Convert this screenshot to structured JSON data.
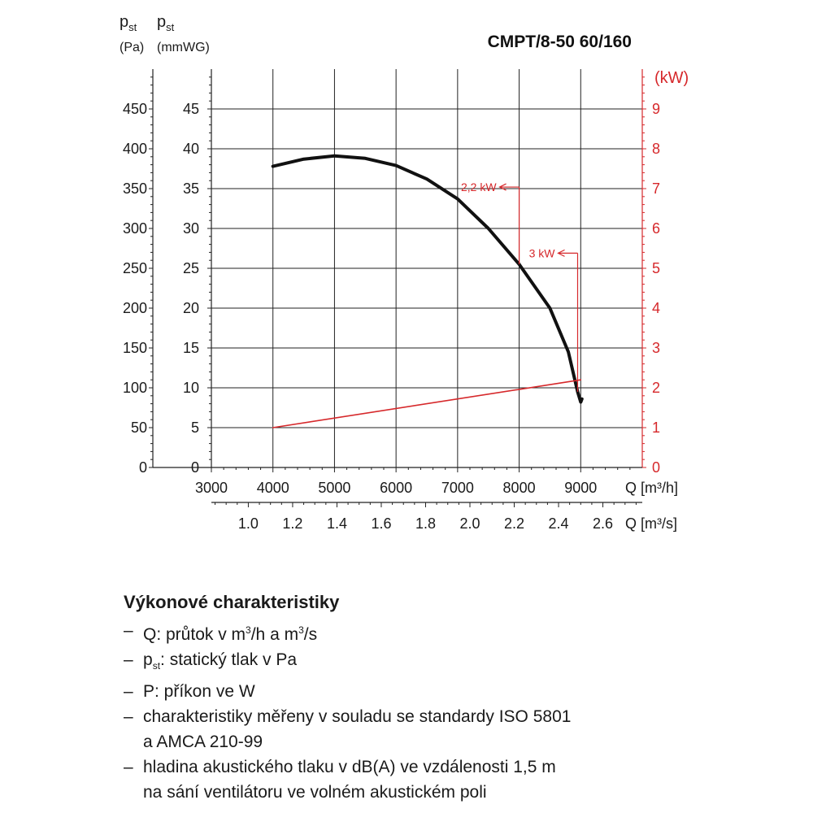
{
  "chart_data": {
    "type": "line",
    "title": "CMPT/8-50 60/160",
    "x_axis": {
      "label": "Q [m³/h]",
      "range": [
        3000,
        10000
      ],
      "ticks": [
        3000,
        4000,
        5000,
        6000,
        7000,
        8000,
        9000
      ]
    },
    "x2_axis": {
      "label": "Q [m³/s]",
      "ticks": [
        1.0,
        1.2,
        1.4,
        1.6,
        1.8,
        2.0,
        2.2,
        2.4,
        2.6
      ]
    },
    "y_axis_pa": {
      "label_main": "p",
      "label_sub": "st",
      "unit": "(Pa)",
      "range": [
        0,
        500
      ],
      "ticks": [
        0,
        50,
        100,
        150,
        200,
        250,
        300,
        350,
        400,
        450
      ]
    },
    "y_axis_mmwg": {
      "label_main": "p",
      "label_sub": "st",
      "unit": "(mmWG)",
      "range": [
        0,
        50
      ],
      "ticks": [
        0,
        5,
        10,
        15,
        20,
        25,
        30,
        35,
        40,
        45
      ]
    },
    "y_axis_kw": {
      "label": "(kW)",
      "range": [
        0,
        10
      ],
      "ticks": [
        0,
        1,
        2,
        3,
        4,
        5,
        6,
        7,
        8,
        9
      ],
      "color": "#d6282b"
    },
    "grid": true,
    "series": [
      {
        "axis": "pa",
        "color": "#111111",
        "points": [
          [
            4000,
            378
          ],
          [
            4500,
            387
          ],
          [
            5000,
            391
          ],
          [
            5500,
            388
          ],
          [
            6000,
            379
          ],
          [
            6500,
            362
          ],
          [
            7000,
            337
          ],
          [
            7500,
            300
          ],
          [
            8000,
            255
          ],
          [
            8500,
            200
          ],
          [
            8800,
            145
          ],
          [
            8950,
            95
          ],
          [
            9000,
            82
          ],
          [
            9020,
            86
          ]
        ]
      },
      {
        "axis": "kw",
        "color": "#d6282b",
        "points": [
          [
            4000,
            1.0
          ],
          [
            9000,
            2.2
          ]
        ]
      }
    ],
    "annotations": [
      {
        "text": "2,2 kW",
        "x": 8000,
        "y_pa": 255,
        "label_y_pa": 352
      },
      {
        "text": "3 kW",
        "x": 8950,
        "y_pa": 95,
        "label_y_pa": 269
      }
    ]
  },
  "notes": {
    "heading": "Výkonové charakteristiky",
    "item1_pre": "Q: průtok v m",
    "item1_sup": "3",
    "item1_mid": "/h a m",
    "item1_sup2": "3",
    "item1_post": "/s",
    "item2_pre": "p",
    "item2_sub": "st",
    "item2_post": ": statický tlak v Pa",
    "item3": "P: příkon ve W",
    "item4_line1": "charakteristiky měřeny v souladu se standardy ISO 5801",
    "item4_line2": "a AMCA 210-99",
    "item5_line1": "hladina akustického tlaku v dB(A) ve vzdálenosti 1,5 m",
    "item5_line2": "na sání ventilátoru ve volném akustickém poli"
  }
}
